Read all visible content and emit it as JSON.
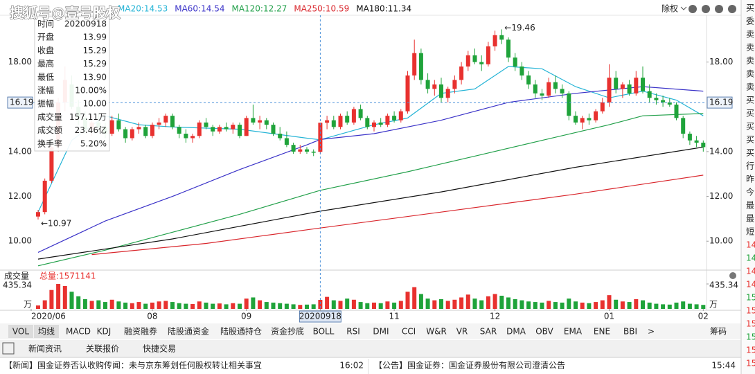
{
  "watermark": "搜狐号@壹号股权",
  "header": {
    "adjust": "除权"
  },
  "chart_data": {
    "type": "candlestick",
    "categories": [
      "2020/06",
      null,
      null,
      null,
      null,
      null,
      null,
      null,
      null,
      null,
      null,
      null,
      null,
      null,
      null,
      null,
      null,
      "08",
      null,
      null,
      null,
      null,
      null,
      null,
      null,
      null,
      null,
      null,
      null,
      null,
      null,
      "09",
      null,
      null,
      null,
      null,
      null,
      null,
      null,
      null,
      null,
      null,
      "20200918",
      null,
      null,
      null,
      null,
      null,
      null,
      null,
      null,
      null,
      null,
      "11",
      null,
      null,
      null,
      null,
      null,
      null,
      null,
      null,
      null,
      null,
      null,
      null,
      null,
      null,
      "12",
      null,
      null,
      null,
      null,
      null,
      null,
      null,
      null,
      null,
      null,
      null,
      null,
      null,
      null,
      null,
      null,
      "01",
      null,
      null,
      null,
      null,
      null,
      null,
      null,
      null,
      null,
      null,
      null,
      null,
      null,
      "02"
    ],
    "candles": [
      [
        11.1,
        11.4,
        10.97,
        11.3
      ],
      [
        11.3,
        12.8,
        11.2,
        12.7
      ],
      [
        12.7,
        14.3,
        12.6,
        14.2
      ],
      [
        14.2,
        16.4,
        14.0,
        16.2
      ],
      [
        16.2,
        17.8,
        15.8,
        17.2
      ],
      [
        17.0,
        17.4,
        15.9,
        16.0
      ],
      [
        16.0,
        16.3,
        15.2,
        15.5
      ],
      [
        15.5,
        15.8,
        14.8,
        15.0
      ],
      [
        15.0,
        15.6,
        14.7,
        15.3
      ],
      [
        15.3,
        15.7,
        14.9,
        15.1
      ],
      [
        15.1,
        15.3,
        14.6,
        14.8
      ],
      [
        14.8,
        15.6,
        14.7,
        15.4
      ],
      [
        15.4,
        15.7,
        14.9,
        15.0
      ],
      [
        15.0,
        15.1,
        14.4,
        14.6
      ],
      [
        14.6,
        15.1,
        14.5,
        15.0
      ],
      [
        15.0,
        15.3,
        14.8,
        15.1
      ],
      [
        15.1,
        15.2,
        14.6,
        14.7
      ],
      [
        14.7,
        15.3,
        14.6,
        15.2
      ],
      [
        15.2,
        15.5,
        15.0,
        15.3
      ],
      [
        15.3,
        15.7,
        15.1,
        15.6
      ],
      [
        15.6,
        15.7,
        15.0,
        15.1
      ],
      [
        15.1,
        15.2,
        14.6,
        14.8
      ],
      [
        14.8,
        15.0,
        14.4,
        14.6
      ],
      [
        14.6,
        14.8,
        14.4,
        14.7
      ],
      [
        14.7,
        15.4,
        14.6,
        15.3
      ],
      [
        15.3,
        15.5,
        15.0,
        15.1
      ],
      [
        15.1,
        15.2,
        14.7,
        14.9
      ],
      [
        14.9,
        15.2,
        14.8,
        15.1
      ],
      [
        15.1,
        15.3,
        14.9,
        15.0
      ],
      [
        15.0,
        15.3,
        14.8,
        15.2
      ],
      [
        15.2,
        15.3,
        14.6,
        14.7
      ],
      [
        14.7,
        15.6,
        14.7,
        15.5
      ],
      [
        15.5,
        16.1,
        15.2,
        15.3
      ],
      [
        15.3,
        15.6,
        15.0,
        15.4
      ],
      [
        15.4,
        15.5,
        15.0,
        15.2
      ],
      [
        15.2,
        15.3,
        14.7,
        14.8
      ],
      [
        14.8,
        15.1,
        14.5,
        14.6
      ],
      [
        14.6,
        14.9,
        14.2,
        14.3
      ],
      [
        14.3,
        14.4,
        13.9,
        14.0
      ],
      [
        14.0,
        14.3,
        13.9,
        14.1
      ],
      [
        14.1,
        14.2,
        13.9,
        14.0
      ],
      [
        14.0,
        14.1,
        13.8,
        13.95
      ],
      [
        13.99,
        15.29,
        13.9,
        15.29
      ],
      [
        15.29,
        15.6,
        15.0,
        15.4
      ],
      [
        15.4,
        15.6,
        15.0,
        15.1
      ],
      [
        15.1,
        15.7,
        15.0,
        15.6
      ],
      [
        15.6,
        15.8,
        15.2,
        15.3
      ],
      [
        15.3,
        16.0,
        15.2,
        15.9
      ],
      [
        15.9,
        16.1,
        15.4,
        15.5
      ],
      [
        15.5,
        15.6,
        15.0,
        15.1
      ],
      [
        15.1,
        15.4,
        14.9,
        15.3
      ],
      [
        15.3,
        15.5,
        15.1,
        15.2
      ],
      [
        15.2,
        15.7,
        15.1,
        15.6
      ],
      [
        15.6,
        15.8,
        15.3,
        15.4
      ],
      [
        15.4,
        15.9,
        15.3,
        15.8
      ],
      [
        15.8,
        17.6,
        15.7,
        17.4
      ],
      [
        17.4,
        19.0,
        17.2,
        18.4
      ],
      [
        18.4,
        18.6,
        17.0,
        17.2
      ],
      [
        17.2,
        17.5,
        16.6,
        16.8
      ],
      [
        16.8,
        17.2,
        16.5,
        17.0
      ],
      [
        17.0,
        17.3,
        16.2,
        16.4
      ],
      [
        16.4,
        16.9,
        16.2,
        16.8
      ],
      [
        16.8,
        17.4,
        16.6,
        17.2
      ],
      [
        17.2,
        18.0,
        17.0,
        17.8
      ],
      [
        17.8,
        18.5,
        17.6,
        18.3
      ],
      [
        18.3,
        18.6,
        17.9,
        18.0
      ],
      [
        18.0,
        18.3,
        17.6,
        17.9
      ],
      [
        17.9,
        18.9,
        17.8,
        18.7
      ],
      [
        18.7,
        19.4,
        18.5,
        19.2
      ],
      [
        19.2,
        19.46,
        18.8,
        19.0
      ],
      [
        19.0,
        19.1,
        18.0,
        18.2
      ],
      [
        18.2,
        18.4,
        17.6,
        17.8
      ],
      [
        17.8,
        18.0,
        17.2,
        17.4
      ],
      [
        17.4,
        17.6,
        16.8,
        17.0
      ],
      [
        17.0,
        17.2,
        16.4,
        16.6
      ],
      [
        16.6,
        16.8,
        16.3,
        16.5
      ],
      [
        16.5,
        17.3,
        16.4,
        17.1
      ],
      [
        17.1,
        17.4,
        16.6,
        16.8
      ],
      [
        16.8,
        17.0,
        16.4,
        16.6
      ],
      [
        16.6,
        16.7,
        15.4,
        15.6
      ],
      [
        15.6,
        15.8,
        15.2,
        15.3
      ],
      [
        15.3,
        15.6,
        15.0,
        15.5
      ],
      [
        15.5,
        15.7,
        15.2,
        15.4
      ],
      [
        15.4,
        15.9,
        15.3,
        15.8
      ],
      [
        15.8,
        16.4,
        15.7,
        16.2
      ],
      [
        16.2,
        17.9,
        16.0,
        17.3
      ],
      [
        17.3,
        17.6,
        16.6,
        16.8
      ],
      [
        16.8,
        17.1,
        16.4,
        17.0
      ],
      [
        17.0,
        17.2,
        16.5,
        16.6
      ],
      [
        16.6,
        17.6,
        16.5,
        17.3
      ],
      [
        17.3,
        17.8,
        16.6,
        16.7
      ],
      [
        16.7,
        17.0,
        16.2,
        16.4
      ],
      [
        16.4,
        16.6,
        16.1,
        16.3
      ],
      [
        16.3,
        16.5,
        16.0,
        16.2
      ],
      [
        16.2,
        16.4,
        16.0,
        16.1
      ],
      [
        16.1,
        16.2,
        15.4,
        15.5
      ],
      [
        15.5,
        15.6,
        14.6,
        14.8
      ],
      [
        14.8,
        14.9,
        14.3,
        14.5
      ],
      [
        14.5,
        14.7,
        14.2,
        14.4
      ],
      [
        14.4,
        14.5,
        14.0,
        14.2
      ]
    ],
    "ylim": [
      8.77,
      20.09
    ],
    "yticks": [
      {
        "value": 10,
        "label": "10.00"
      },
      {
        "value": 12,
        "label": "12.00"
      },
      {
        "value": 14,
        "label": "14.00"
      },
      {
        "value": 18,
        "label": "18.00"
      }
    ],
    "series": [
      {
        "name": "MA20:14.53",
        "color": "#25b4d6",
        "x": [
          0,
          5,
          10,
          15,
          20,
          30,
          40,
          42,
          50,
          55,
          60,
          65,
          70,
          75,
          80,
          85,
          90,
          95,
          99
        ],
        "values": [
          11.3,
          14.5,
          15.6,
          15.2,
          15.1,
          15.0,
          14.6,
          14.53,
          15.2,
          15.5,
          16.6,
          16.8,
          17.8,
          17.7,
          16.9,
          16.4,
          16.7,
          16.3,
          15.6
        ]
      },
      {
        "name": "MA60:14.54",
        "color": "#3a32c8",
        "x": [
          0,
          10,
          20,
          30,
          40,
          42,
          50,
          60,
          70,
          80,
          90,
          99
        ],
        "values": [
          9.5,
          10.9,
          12.0,
          13.2,
          14.3,
          14.54,
          14.8,
          15.4,
          16.2,
          16.6,
          16.9,
          16.7
        ]
      },
      {
        "name": "MA120:12.27",
        "color": "#22a04a",
        "x": [
          0,
          10,
          20,
          30,
          42,
          55,
          65,
          75,
          85,
          90,
          99
        ],
        "values": [
          8.9,
          9.6,
          10.4,
          11.2,
          12.27,
          13.1,
          13.8,
          14.5,
          15.2,
          15.6,
          15.7
        ]
      },
      {
        "name": "MA250:10.59",
        "color": "#d9262c",
        "x": [
          8,
          25,
          42,
          60,
          80,
          99
        ],
        "values": [
          9.4,
          9.9,
          10.59,
          11.3,
          12.1,
          12.95
        ]
      },
      {
        "name": "MA180:11.34",
        "color": "#111111",
        "x": [
          0,
          20,
          42,
          60,
          80,
          99
        ],
        "values": [
          9.2,
          10.1,
          11.34,
          12.2,
          13.3,
          14.2
        ]
      }
    ],
    "annotations": [
      {
        "text": "←19.46",
        "index": 69,
        "value": 19.46
      },
      {
        "text": "←10.97",
        "index": 0,
        "value": 10.97
      }
    ],
    "crosshair": {
      "index": 42,
      "value": {
        "value": 16.19,
        "label": "16.19"
      }
    },
    "info": [
      [
        "时间",
        "20200918"
      ],
      [
        "开盘",
        "13.99"
      ],
      [
        "收盘",
        "15.29"
      ],
      [
        "最高",
        "15.29"
      ],
      [
        "最低",
        "13.90"
      ],
      [
        "涨幅",
        "10.00%"
      ],
      [
        "振幅",
        "10.00"
      ],
      [
        "成交量",
        "157.11万"
      ],
      [
        "成交额",
        "23.46亿"
      ],
      [
        "换手率",
        "5.20%"
      ]
    ],
    "volume": {
      "title": "成交量",
      "total": "总量:1571141",
      "unit": "万",
      "ylim": [
        0,
        435.34
      ],
      "yticks": [
        {
          "value": 435.34,
          "label": "435.34"
        }
      ],
      "values": [
        60,
        150,
        330,
        435,
        400,
        300,
        220,
        170,
        140,
        150,
        120,
        160,
        130,
        110,
        100,
        120,
        90,
        110,
        130,
        140,
        120,
        100,
        90,
        85,
        130,
        110,
        90,
        95,
        80,
        100,
        90,
        180,
        200,
        150,
        120,
        110,
        100,
        90,
        80,
        70,
        75,
        80,
        157.11,
        210,
        150,
        140,
        180,
        160,
        120,
        100,
        110,
        100,
        130,
        110,
        140,
        300,
        380,
        260,
        180,
        150,
        170,
        140,
        160,
        200,
        250,
        180,
        150,
        220,
        260,
        230,
        200,
        170,
        150,
        130,
        120,
        110,
        140,
        120,
        110,
        180,
        130,
        110,
        100,
        120,
        150,
        240,
        160,
        130,
        120,
        170,
        150,
        110,
        90,
        80,
        75,
        110,
        130,
        90,
        80,
        70
      ]
    }
  },
  "indicator_tabs": [
    "VOL",
    "均线",
    "MACD",
    "KDJ",
    "融资融券",
    "陆股通资金",
    "陆股通持仓",
    "资金抄底",
    "BOLL",
    "RSI",
    "DMI",
    "CCI",
    "W&R",
    "VR",
    "SAR",
    "DMA",
    "OBV",
    "EMA",
    "ENE",
    "BBI",
    ">",
    "筹码"
  ],
  "bottom_tabs": [
    "新闻资讯",
    "关联报价",
    "快捷交易"
  ],
  "news": [
    {
      "text": "【新闻】国金证券否认收购传闻：未与京东筹划任何股权转让相关事宜",
      "time": "16:02"
    },
    {
      "text": "【公告】国金证券：国金证券股份有限公司澄清公告",
      "time": "15:44"
    }
  ],
  "sidebar": [
    "买",
    "委",
    "卖",
    "卖",
    "卖",
    "卖",
    "卖",
    "买",
    "买",
    "买",
    "买",
    "买",
    "行",
    "昨",
    "今",
    "最",
    "最",
    "短",
    "14",
    "14",
    "14",
    "14",
    "15",
    "15",
    "15",
    "15",
    "15",
    "15"
  ]
}
